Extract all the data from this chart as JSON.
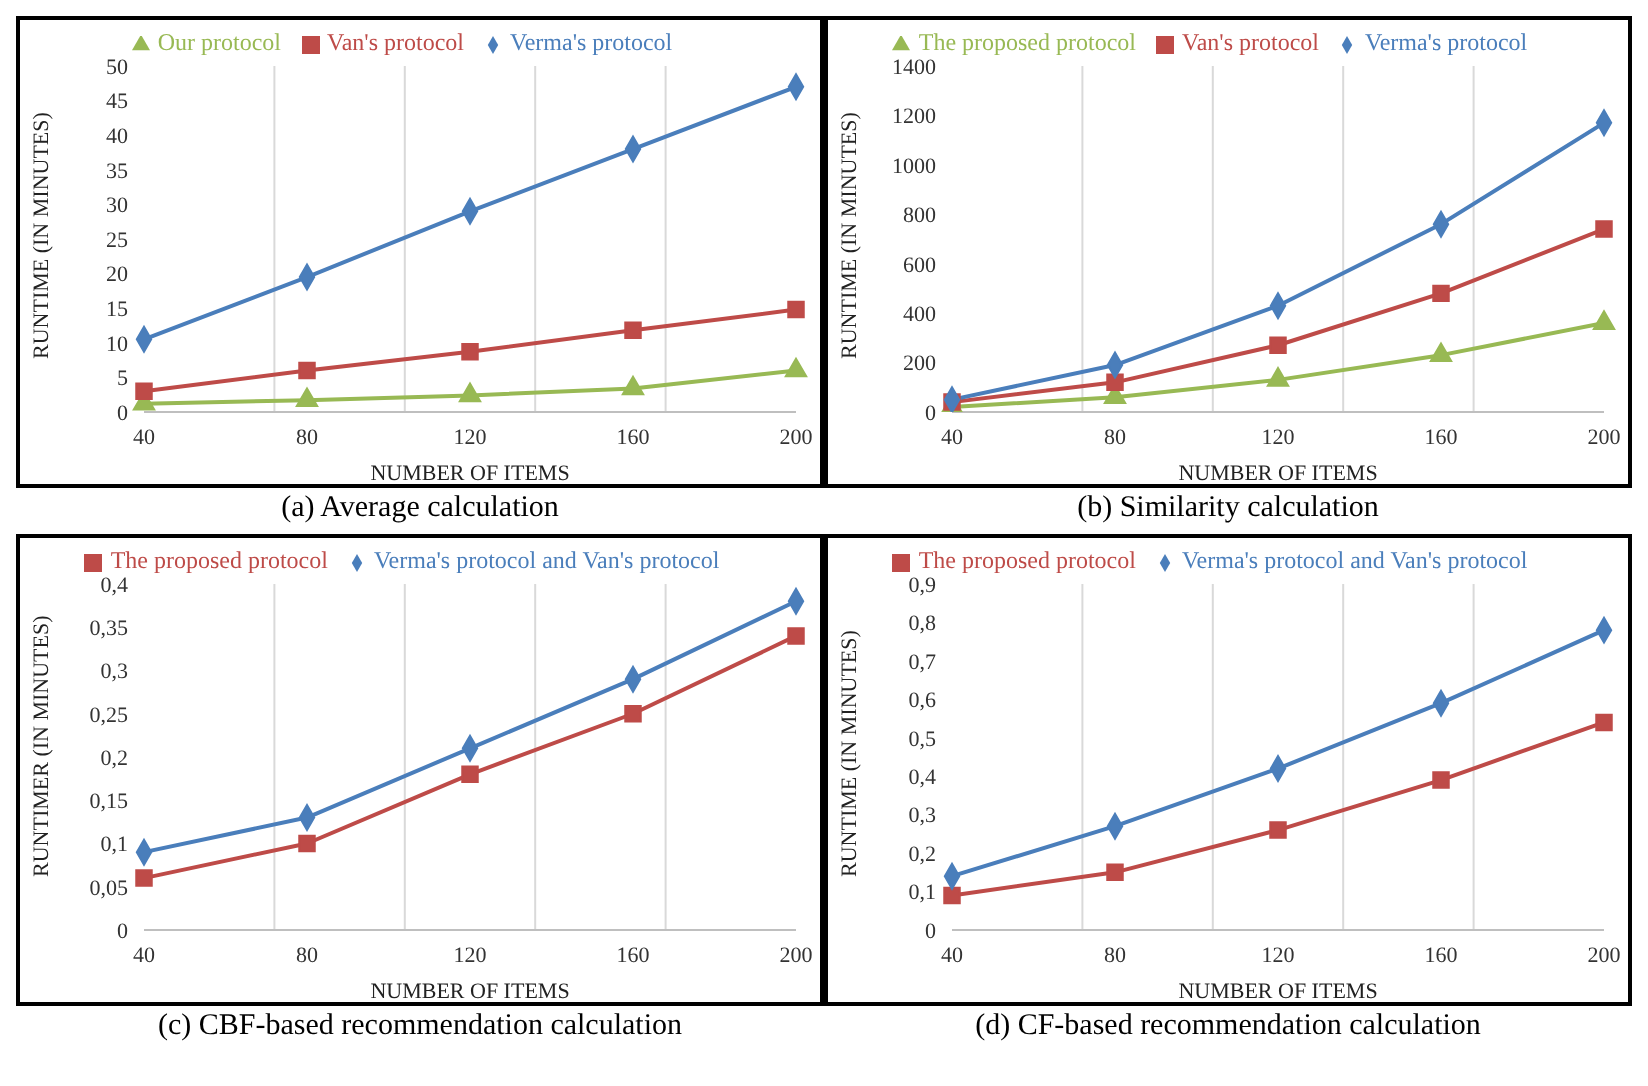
{
  "chart_data": [
    {
      "type": "line",
      "title": "(a) Average calculation",
      "xlabel": "NUMBER OF ITEMS",
      "ylabel": "RUNTIME (IN MINUTES)",
      "categories": [
        "40",
        "80",
        "120",
        "160",
        "200"
      ],
      "ylim": [
        0,
        50
      ],
      "yticks": [
        0,
        5,
        10,
        15,
        20,
        25,
        30,
        35,
        40,
        45,
        50
      ],
      "grid": "x",
      "legend": "top",
      "series": [
        {
          "name": "Verma's  protocol",
          "color": "#4a7ebb",
          "marker": "diamond",
          "values": [
            10.5,
            19.5,
            29,
            38,
            47
          ]
        },
        {
          "name": "Van's protocol",
          "color": "#be4b48",
          "marker": "square",
          "values": [
            3,
            6,
            8.7,
            11.8,
            14.8
          ]
        },
        {
          "name": "Our protocol",
          "color": "#98b954",
          "marker": "triangle",
          "values": [
            1.2,
            1.7,
            2.4,
            3.4,
            6
          ]
        }
      ]
    },
    {
      "type": "line",
      "title": "(b) Similarity calculation",
      "xlabel": "NUMBER OF ITEMS",
      "ylabel": "RUNTIME (IN MINUTES)",
      "categories": [
        "40",
        "80",
        "120",
        "160",
        "200"
      ],
      "ylim": [
        0,
        1400
      ],
      "yticks": [
        0,
        200,
        400,
        600,
        800,
        1000,
        1200,
        1400
      ],
      "grid": "x",
      "legend": "top",
      "series": [
        {
          "name": "Verma's protocol",
          "color": "#4a7ebb",
          "marker": "diamond",
          "values": [
            50,
            190,
            430,
            760,
            1170
          ]
        },
        {
          "name": "Van's protocol",
          "color": "#be4b48",
          "marker": "square",
          "values": [
            40,
            120,
            270,
            480,
            740
          ]
        },
        {
          "name": "The proposed protocol",
          "color": "#98b954",
          "marker": "triangle",
          "values": [
            20,
            60,
            130,
            230,
            360
          ]
        }
      ]
    },
    {
      "type": "line",
      "title": "(c) CBF-based recommendation calculation",
      "xlabel": "NUMBER OF ITEMS",
      "ylabel": "RUNTIMER (IN MINUTES)",
      "categories": [
        "40",
        "80",
        "120",
        "160",
        "200"
      ],
      "ylim": [
        0,
        0.4
      ],
      "yticks": [
        0,
        {
          "value": 0.05,
          "label": "0,05"
        },
        {
          "value": 0.1,
          "label": "0,1"
        },
        {
          "value": 0.15,
          "label": "0,15"
        },
        {
          "value": 0.2,
          "label": "0,2"
        },
        {
          "value": 0.25,
          "label": "0,25"
        },
        {
          "value": 0.3,
          "label": "0,3"
        },
        {
          "value": 0.35,
          "label": "0,35"
        },
        {
          "value": 0.4,
          "label": "0,4"
        }
      ],
      "grid": "x",
      "legend": "top",
      "series": [
        {
          "name": "Verma's protocol and Van's protocol",
          "color": "#4a7ebb",
          "marker": "diamond",
          "values": [
            0.09,
            0.13,
            0.21,
            0.29,
            0.38
          ]
        },
        {
          "name": "The proposed protocol",
          "color": "#be4b48",
          "marker": "square",
          "values": [
            0.06,
            0.1,
            0.18,
            0.25,
            0.34
          ]
        }
      ]
    },
    {
      "type": "line",
      "title": "(d) CF-based recommendation calculation",
      "xlabel": "NUMBER OF ITEMS",
      "ylabel": "RUNTIME (IN MINUTES)",
      "categories": [
        "40",
        "80",
        "120",
        "160",
        "200"
      ],
      "ylim": [
        0,
        0.9
      ],
      "yticks": [
        0,
        {
          "value": 0.1,
          "label": "0,1"
        },
        {
          "value": 0.2,
          "label": "0,2"
        },
        {
          "value": 0.3,
          "label": "0,3"
        },
        {
          "value": 0.4,
          "label": "0,4"
        },
        {
          "value": 0.5,
          "label": "0,5"
        },
        {
          "value": 0.6,
          "label": "0,6"
        },
        {
          "value": 0.7,
          "label": "0,7"
        },
        {
          "value": 0.8,
          "label": "0,8"
        },
        {
          "value": 0.9,
          "label": "0,9"
        }
      ],
      "grid": "x",
      "legend": "top",
      "series": [
        {
          "name": "Verma's protocol and Van's protocol",
          "color": "#4a7ebb",
          "marker": "diamond",
          "values": [
            0.14,
            0.27,
            0.42,
            0.59,
            0.78
          ]
        },
        {
          "name": "The proposed protocol",
          "color": "#be4b48",
          "marker": "square",
          "values": [
            0.09,
            0.15,
            0.26,
            0.39,
            0.54
          ]
        }
      ]
    }
  ]
}
